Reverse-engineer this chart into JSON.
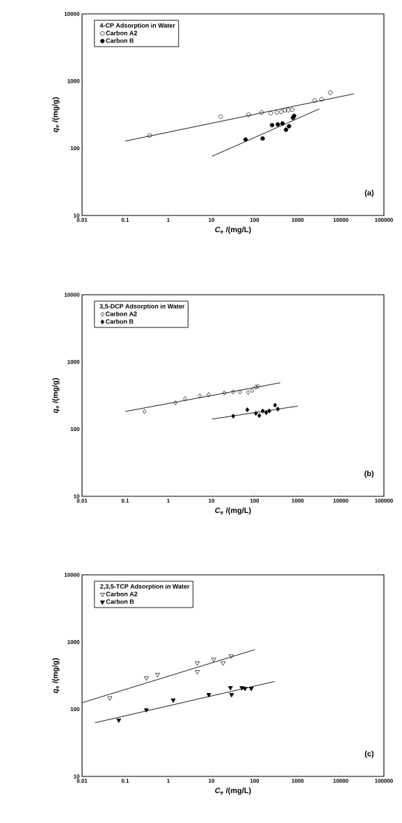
{
  "chart_data": [
    {
      "type": "scatter",
      "legend_title": "4-CP Adsorption in Water",
      "xlabel": "*C*$_{e}$ /(mg/L)",
      "ylabel": "*q*$_{e}$ /(mg/g)",
      "annotations": [
        "(a)"
      ],
      "log": "xy",
      "legend": "top left",
      "xlim": [
        0.01,
        100000
      ],
      "ylim": [
        10,
        10000
      ],
      "xticks": [
        0.01,
        0.1,
        1,
        10,
        100,
        1000,
        10000,
        100000
      ],
      "yticks": [
        10,
        100,
        1000,
        10000
      ],
      "series": [
        {
          "name": "Carbon A2",
          "color": "#000000",
          "marker": "circle",
          "x": [
            0.37,
            16.4,
            73,
            146,
            238,
            327,
            420,
            505,
            610,
            750,
            2480,
            3600,
            5700
          ],
          "values": [
            155,
            297,
            316,
            342,
            334,
            342,
            350,
            370,
            370,
            376,
            517,
            538,
            673
          ]
        },
        {
          "name": "Carbon B",
          "color": "#000000",
          "marker": "circle",
          "x": [
            62,
            154,
            254,
            347,
            446,
            537,
            630,
            780,
            830
          ],
          "values": [
            135,
            140,
            221,
            227,
            234,
            189,
            213,
            285,
            304
          ]
        },
        {
          "type": "line",
          "color": "#000000",
          "x": [
            0.1,
            20000
          ],
          "values": [
            128,
            646
          ]
        },
        {
          "type": "line",
          "color": "#000000",
          "x": [
            10.3,
            3180
          ],
          "values": [
            76,
            386
          ]
        }
      ]
    },
    {
      "type": "scatter",
      "legend_title": "3,5-DCP Adsorption in Water",
      "xlabel": "*C*$_{e}$ /(mg/L)",
      "ylabel": "*q*$_{e}$ /(mg/g)",
      "annotations": [
        "(b)"
      ],
      "log": "xy",
      "legend": "top left",
      "xlim": [
        0.01,
        100000
      ],
      "ylim": [
        10,
        10000
      ],
      "xticks": [
        0.01,
        0.1,
        1,
        10,
        100,
        1000,
        10000,
        100000
      ],
      "yticks": [
        10,
        100,
        1000,
        10000
      ],
      "series": [
        {
          "name": "Carbon A2",
          "color": "#000000",
          "marker": "diamond",
          "x": [
            0.28,
            1.47,
            2.45,
            5.4,
            8.6,
            20,
            32,
            46,
            71,
            88,
            107,
            120
          ],
          "values": [
            183,
            246,
            284,
            313,
            325,
            347,
            358,
            358,
            352,
            375,
            423,
            434
          ]
        },
        {
          "name": "Carbon B",
          "color": "#000000",
          "marker": "diamond",
          "x": [
            32,
            68,
            107,
            129,
            155,
            186,
            219,
            299,
            347
          ],
          "values": [
            156,
            194,
            172,
            159,
            186,
            176,
            186,
            227,
            199
          ]
        },
        {
          "type": "line",
          "color": "#000000",
          "x": [
            0.1,
            394
          ],
          "values": [
            183,
            489
          ]
        },
        {
          "type": "line",
          "color": "#000000",
          "x": [
            10.4,
            1000
          ],
          "values": [
            141,
            220
          ]
        }
      ]
    },
    {
      "type": "scatter",
      "legend_title": "2,3,5-TCP Adsorption in Water",
      "xlabel": "*C*$_{e}$ /(mg/L)",
      "ylabel": "*q*$_{e}$ /(mg/g)",
      "annotations": [
        "(c)"
      ],
      "log": "xy",
      "legend": "top left",
      "xlim": [
        0.01,
        100000
      ],
      "ylim": [
        10,
        10000
      ],
      "xticks": [
        0.01,
        0.1,
        1,
        10,
        100,
        1000,
        10000,
        100000
      ],
      "yticks": [
        10,
        100,
        1000,
        10000
      ],
      "series": [
        {
          "name": "Carbon A2",
          "color": "#000000",
          "marker": "triangle",
          "x": [
            0.044,
            0.31,
            0.56,
            4.7,
            4.7,
            11.2,
            18.6,
            28.6
          ],
          "values": [
            147,
            292,
            329,
            489,
            362,
            551,
            489,
            621
          ]
        },
        {
          "name": "Carbon B",
          "color": "#000000",
          "marker": "triangle",
          "x": [
            0.071,
            0.31,
            1.3,
            8.7,
            27.6,
            29.3,
            51,
            60,
            84
          ],
          "values": [
            69,
            98,
            137,
            165,
            209,
            165,
            209,
            204,
            204
          ]
        },
        {
          "type": "line",
          "color": "#000000",
          "x": [
            0.01,
            100
          ],
          "values": [
            125,
            769
          ]
        },
        {
          "type": "line",
          "color": "#000000",
          "x": [
            0.02,
            290
          ],
          "values": [
            63,
            259
          ]
        }
      ]
    }
  ]
}
